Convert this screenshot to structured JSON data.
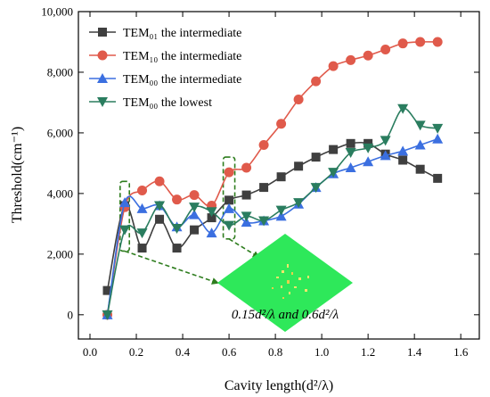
{
  "chart_data": {
    "type": "line",
    "xlabel": "Cavity length(d²/λ)",
    "ylabel": "Threshold(cm⁻¹)",
    "xlim": [
      -0.05,
      1.68
    ],
    "ylim": [
      -800,
      10000
    ],
    "xticks": [
      "0.0",
      "0.2",
      "0.4",
      "0.6",
      "0.8",
      "1.0",
      "1.2",
      "1.4",
      "1.6"
    ],
    "yticks": [
      "0",
      "2,000",
      "4,000",
      "6,000",
      "8,000",
      "10,000"
    ],
    "legend_position": "top-left",
    "grid": false,
    "series": [
      {
        "name": "TEM₀₁ the intermediate",
        "color": "#3f3f3f",
        "marker": "square",
        "x": [
          0.075,
          0.15,
          0.225,
          0.3,
          0.375,
          0.45,
          0.525,
          0.6,
          0.675,
          0.75,
          0.825,
          0.9,
          0.975,
          1.05,
          1.125,
          1.2,
          1.275,
          1.35,
          1.425,
          1.5
        ],
        "y": [
          800,
          3600,
          2200,
          3150,
          2200,
          2800,
          3200,
          3780,
          3950,
          4200,
          4550,
          4900,
          5200,
          5450,
          5650,
          5650,
          5300,
          5100,
          4800,
          4500
        ]
      },
      {
        "name": "TEM₁₀ the intermediate",
        "color": "#e05a4b",
        "marker": "circle",
        "x": [
          0.075,
          0.15,
          0.225,
          0.3,
          0.375,
          0.45,
          0.525,
          0.6,
          0.675,
          0.75,
          0.825,
          0.9,
          0.975,
          1.05,
          1.125,
          1.2,
          1.275,
          1.35,
          1.425,
          1.5
        ],
        "y": [
          0,
          3550,
          4100,
          4400,
          3800,
          3950,
          3600,
          4700,
          4850,
          5600,
          6300,
          7100,
          7700,
          8200,
          8400,
          8550,
          8750,
          8950,
          9000,
          9000
        ]
      },
      {
        "name": "TEM₀₀ the intermediate",
        "color": "#3b6fe0",
        "marker": "triangle-up",
        "x": [
          0.075,
          0.15,
          0.225,
          0.3,
          0.375,
          0.45,
          0.525,
          0.6,
          0.675,
          0.75,
          0.825,
          0.9,
          0.975,
          1.05,
          1.125,
          1.2,
          1.275,
          1.35,
          1.425,
          1.5
        ],
        "y": [
          0,
          3700,
          3500,
          3600,
          2900,
          3300,
          2700,
          3500,
          3050,
          3100,
          3250,
          3650,
          4200,
          4650,
          4850,
          5050,
          5250,
          5400,
          5600,
          5800
        ]
      },
      {
        "name": "TEM₀₀ the lowest",
        "color": "#2a7d5f",
        "marker": "triangle-down",
        "x": [
          0.075,
          0.15,
          0.225,
          0.3,
          0.375,
          0.45,
          0.525,
          0.6,
          0.675,
          0.75,
          0.825,
          0.9,
          0.975,
          1.05,
          1.125,
          1.2,
          1.275,
          1.35,
          1.425,
          1.5
        ],
        "y": [
          0,
          2800,
          2700,
          3600,
          2850,
          3550,
          3400,
          2950,
          3250,
          3100,
          3450,
          3700,
          4200,
          4700,
          5350,
          5500,
          5750,
          6800,
          6250,
          6150
        ]
      }
    ],
    "annotations": [
      {
        "type": "dashed-box",
        "color": "#2e7d1e",
        "x_range": [
          0.13,
          0.17
        ],
        "y_range": [
          2100,
          4400
        ]
      },
      {
        "type": "dashed-box",
        "color": "#2e7d1e",
        "x_range": [
          0.575,
          0.625
        ],
        "y_range": [
          2500,
          5200
        ]
      },
      {
        "type": "inset-image",
        "description_color": "#2ee85a",
        "label": "0.15d²/λ and 0.6d²/λ"
      }
    ]
  }
}
